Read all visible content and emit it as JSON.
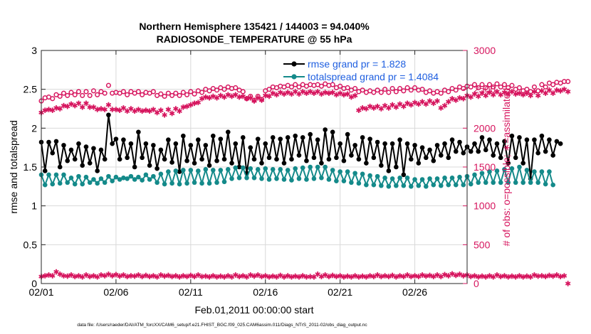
{
  "chart_data": {
    "type": "line",
    "title_line1": "Northern Hemisphere 135421 / 144003 = 94.040%",
    "title_line2": "RADIOSONDE_TEMPERATURE @ 55 hPa",
    "ylabel_left": "rmse and totalspread",
    "ylabel_right": "# of obs: o=possible; ∗=assimilated",
    "xlabel": "Feb.01,2011 00:00:00 start",
    "footnote": "data file: /Users/raeder/DAI/ATM_forcXX/CAM6_setup/f.e21.FHIST_BGC.f09_025.CAM6assim.011/Diags_NTrS_2011-02/obs_diag_output.nc",
    "xlim": [
      0,
      28.5
    ],
    "ylim_left": [
      0,
      3
    ],
    "ylim_right": [
      0,
      3000
    ],
    "x_ticks": [
      0,
      5,
      10,
      15,
      20,
      25
    ],
    "x_tick_labels": [
      "02/01",
      "02/06",
      "02/11",
      "02/16",
      "02/21",
      "02/26"
    ],
    "y_ticks_left": [
      0,
      0.5,
      1,
      1.5,
      2,
      2.5,
      3
    ],
    "y_tick_labels_left": [
      "0",
      "0.5",
      "1",
      "1.5",
      "2",
      "2.5",
      "3"
    ],
    "y_ticks_right": [
      0,
      500,
      1000,
      1500,
      2000,
      2500,
      3000
    ],
    "y_tick_labels_right": [
      "0",
      "500",
      "1000",
      "1500",
      "2000",
      "2500",
      "3000"
    ],
    "time_step_days": 0.25,
    "legend": {
      "placement": "top-right",
      "entries": [
        "rmse grand pr = 1.828",
        "totalspread grand pr = 1.4084"
      ]
    },
    "colors": {
      "rmse": "#000000",
      "spread": "#148a8a",
      "obs": "#d6155e",
      "legend_text": "#1f5fe0",
      "grid": "#d9d9d9"
    },
    "series": [
      {
        "name": "rmse",
        "axis": "left",
        "values": [
          1.82,
          1.45,
          1.82,
          1.68,
          1.83,
          1.5,
          1.78,
          1.58,
          1.72,
          1.6,
          1.8,
          1.52,
          1.76,
          1.55,
          1.74,
          1.45,
          1.72,
          1.6,
          2.17,
          1.8,
          1.86,
          1.6,
          1.85,
          1.62,
          1.8,
          1.5,
          1.95,
          1.62,
          1.8,
          1.52,
          1.78,
          1.48,
          1.72,
          1.6,
          1.85,
          1.56,
          1.8,
          1.44,
          1.9,
          1.58,
          1.78,
          1.55,
          1.85,
          1.6,
          1.78,
          1.52,
          1.9,
          1.58,
          1.86,
          1.6,
          1.95,
          1.55,
          1.8,
          1.5,
          1.88,
          1.42,
          1.75,
          1.6,
          1.86,
          1.55,
          1.8,
          1.62,
          1.88,
          1.6,
          1.86,
          1.55,
          1.88,
          1.6,
          1.9,
          1.65,
          1.88,
          1.58,
          1.92,
          1.62,
          1.85,
          1.55,
          1.98,
          1.6,
          1.95,
          1.62,
          1.8,
          1.58,
          1.92,
          1.65,
          1.78,
          1.6,
          1.88,
          1.55,
          1.86,
          1.62,
          1.82,
          1.52,
          1.8,
          1.45,
          1.8,
          1.5,
          1.85,
          1.4,
          1.8,
          1.6,
          1.78,
          1.55,
          1.75,
          1.62,
          1.72,
          1.58,
          1.78,
          1.65,
          1.8,
          1.62,
          1.85,
          1.7,
          1.82,
          1.68,
          1.76,
          1.7,
          1.8,
          1.7,
          1.88,
          1.72,
          1.85,
          1.65,
          1.8,
          1.62,
          1.83,
          1.55,
          1.9,
          1.62,
          1.88,
          1.55,
          1.85,
          1.35,
          1.85,
          1.68,
          1.9,
          1.7,
          1.85,
          1.65,
          1.83,
          1.8
        ]
      },
      {
        "name": "totalspread",
        "axis": "left",
        "values": [
          1.4,
          1.27,
          1.4,
          1.28,
          1.4,
          1.29,
          1.4,
          1.3,
          1.36,
          1.28,
          1.38,
          1.28,
          1.37,
          1.3,
          1.34,
          1.29,
          1.35,
          1.3,
          1.38,
          1.32,
          1.37,
          1.34,
          1.36,
          1.35,
          1.38,
          1.34,
          1.37,
          1.33,
          1.4,
          1.34,
          1.38,
          1.3,
          1.41,
          1.28,
          1.44,
          1.29,
          1.45,
          1.28,
          1.46,
          1.29,
          1.46,
          1.3,
          1.45,
          1.29,
          1.47,
          1.29,
          1.46,
          1.3,
          1.46,
          1.31,
          1.47,
          1.35,
          1.49,
          1.36,
          1.49,
          1.36,
          1.48,
          1.36,
          1.47,
          1.35,
          1.48,
          1.34,
          1.47,
          1.35,
          1.47,
          1.34,
          1.46,
          1.33,
          1.48,
          1.35,
          1.49,
          1.34,
          1.5,
          1.35,
          1.5,
          1.36,
          1.5,
          1.34,
          1.46,
          1.32,
          1.44,
          1.32,
          1.44,
          1.3,
          1.42,
          1.29,
          1.41,
          1.27,
          1.39,
          1.27,
          1.38,
          1.26,
          1.36,
          1.25,
          1.35,
          1.26,
          1.36,
          1.26,
          1.36,
          1.25,
          1.34,
          1.26,
          1.34,
          1.25,
          1.35,
          1.27,
          1.35,
          1.26,
          1.36,
          1.27,
          1.36,
          1.27,
          1.37,
          1.27,
          1.38,
          1.28,
          1.4,
          1.3,
          1.42,
          1.3,
          1.44,
          1.3,
          1.45,
          1.3,
          1.47,
          1.3,
          1.48,
          1.3,
          1.5,
          1.3,
          1.46,
          1.3,
          1.44,
          1.3,
          1.44,
          1.28,
          1.44,
          1.27
        ]
      },
      {
        "name": "obs_possible",
        "axis": "right",
        "marker": "o",
        "values": [
          2350,
          2390,
          2400,
          2380,
          2430,
          2410,
          2450,
          2420,
          2460,
          2430,
          2470,
          2420,
          2470,
          2420,
          2480,
          2430,
          2470,
          2450,
          2550,
          2450,
          2460,
          2450,
          2470,
          2430,
          2470,
          2450,
          2470,
          2430,
          2460,
          2450,
          2470,
          2420,
          2440,
          2410,
          2450,
          2420,
          2450,
          2420,
          2460,
          2430,
          2470,
          2440,
          2480,
          2460,
          2500,
          2480,
          2510,
          2490,
          2520,
          2500,
          2530,
          2510,
          2520,
          2490,
          2470,
          2380,
          2410,
          2360,
          2410,
          2370,
          2480,
          2500,
          2530,
          2520,
          2540,
          2530,
          2550,
          2530,
          2560,
          2530,
          2560,
          2540,
          2560,
          2550,
          2560,
          2540,
          2570,
          2550,
          2560,
          2520,
          2540,
          2510,
          2520,
          2490,
          2510,
          2470,
          2490,
          2460,
          2480,
          2460,
          2490,
          2460,
          2500,
          2460,
          2510,
          2470,
          2510,
          2480,
          2520,
          2490,
          2520,
          2490,
          2500,
          2460,
          2480,
          2450,
          2470,
          2450,
          2490,
          2470,
          2510,
          2490,
          2530,
          2510,
          2540,
          2530,
          2560,
          2520,
          2560,
          2520,
          2560,
          2530,
          2570,
          2530,
          2560,
          2520,
          2550,
          2500,
          2520,
          2480,
          2500,
          2470,
          2530,
          2480,
          2560,
          2530,
          2580,
          2560,
          2590,
          2580,
          2600,
          2600
        ]
      },
      {
        "name": "obs_assimilated",
        "axis": "right",
        "marker": "*",
        "values": [
          2200,
          2230,
          2240,
          2230,
          2260,
          2250,
          2290,
          2280,
          2310,
          2290,
          2320,
          2270,
          2320,
          2270,
          2270,
          2240,
          2250,
          2240,
          2300,
          2240,
          2240,
          2230,
          2260,
          2220,
          2250,
          2220,
          2240,
          2220,
          2230,
          2220,
          2240,
          2200,
          2230,
          2170,
          2240,
          2190,
          2250,
          2220,
          2270,
          2280,
          2300,
          2320,
          2330,
          2380,
          2400,
          2390,
          2410,
          2390,
          2420,
          2400,
          2430,
          2410,
          2430,
          2400,
          2410,
          2380,
          2390,
          2350,
          2390,
          2360,
          2420,
          2410,
          2450,
          2430,
          2460,
          2440,
          2460,
          2440,
          2470,
          2440,
          2470,
          2450,
          2470,
          2450,
          2470,
          2440,
          2460,
          2450,
          2460,
          2430,
          2450,
          2430,
          2440,
          2400,
          2420,
          2230,
          2260,
          2250,
          2280,
          2260,
          2280,
          2250,
          2290,
          2260,
          2300,
          2270,
          2310,
          2280,
          2320,
          2300,
          2330,
          2310,
          2340,
          2310,
          2350,
          2320,
          2350,
          2260,
          2290,
          2340,
          2380,
          2360,
          2390,
          2380,
          2420,
          2400,
          2440,
          2410,
          2450,
          2420,
          2460,
          2430,
          2470,
          2430,
          2460,
          2440,
          2470,
          2440,
          2450,
          2430,
          2450,
          2420,
          2470,
          2420,
          2480,
          2450,
          2490,
          2450,
          2490,
          2480,
          2500,
          2470
        ]
      },
      {
        "name": "obs_assimilated_near_zero",
        "axis": "right",
        "marker": "*",
        "values": [
          90,
          100,
          110,
          100,
          150,
          120,
          100,
          95,
          110,
          90,
          100,
          85,
          110,
          90,
          100,
          85,
          110,
          100,
          120,
          100,
          115,
          95,
          110,
          90,
          100,
          95,
          110,
          90,
          105,
          90,
          100,
          85,
          110,
          95,
          105,
          90,
          100,
          85,
          100,
          90,
          105,
          90,
          110,
          90,
          95,
          85,
          100,
          85,
          95,
          85,
          100,
          85,
          110,
          90,
          100,
          85,
          110,
          95,
          110,
          90,
          100,
          85,
          95,
          85,
          105,
          85,
          100,
          85,
          95,
          85,
          100,
          85,
          90,
          85,
          120,
          90,
          110,
          90,
          105,
          90,
          100,
          85,
          95,
          85,
          100,
          85,
          95,
          85,
          100,
          90,
          110,
          90,
          100,
          90,
          105,
          85,
          100,
          90,
          110,
          90,
          100,
          90,
          110,
          95,
          105,
          90,
          110,
          90,
          115,
          100,
          125,
          105,
          120,
          100,
          110,
          90,
          100,
          85,
          95,
          85,
          100,
          85,
          110,
          90,
          100,
          85,
          95,
          85,
          100,
          85,
          95,
          85,
          110,
          95,
          100,
          90,
          105,
          95,
          110,
          90,
          100,
          0
        ]
      }
    ]
  }
}
